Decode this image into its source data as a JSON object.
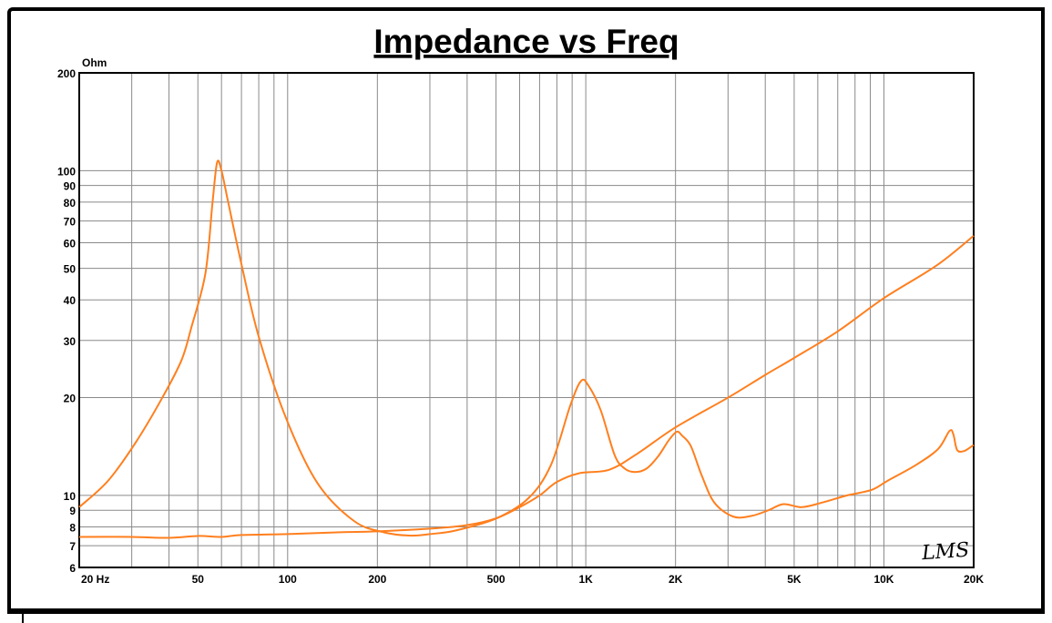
{
  "chart_data": {
    "type": "line",
    "title": "Impedance vs Freq",
    "ylabel": "Ohm",
    "xlabel": "",
    "x_scale": "log",
    "y_scale": "log",
    "xlim": [
      20,
      20000
    ],
    "ylim": [
      6,
      200
    ],
    "grid": true,
    "x_ticks": [
      {
        "v": 20,
        "label": "20  Hz"
      },
      {
        "v": 50,
        "label": "50"
      },
      {
        "v": 100,
        "label": "100"
      },
      {
        "v": 200,
        "label": "200"
      },
      {
        "v": 500,
        "label": "500"
      },
      {
        "v": 1000,
        "label": "1K"
      },
      {
        "v": 2000,
        "label": "2K"
      },
      {
        "v": 5000,
        "label": "5K"
      },
      {
        "v": 10000,
        "label": "10K"
      },
      {
        "v": 20000,
        "label": "20K"
      }
    ],
    "y_ticks": [
      {
        "v": 200,
        "label": "200"
      },
      {
        "v": 100,
        "label": "100"
      },
      {
        "v": 90,
        "label": "90"
      },
      {
        "v": 80,
        "label": "80"
      },
      {
        "v": 70,
        "label": "70"
      },
      {
        "v": 60,
        "label": "60"
      },
      {
        "v": 50,
        "label": "50"
      },
      {
        "v": 40,
        "label": "40"
      },
      {
        "v": 30,
        "label": "30"
      },
      {
        "v": 20,
        "label": "20"
      },
      {
        "v": 10,
        "label": "10"
      },
      {
        "v": 9,
        "label": "9"
      },
      {
        "v": 8,
        "label": "8"
      },
      {
        "v": 7,
        "label": "7"
      },
      {
        "v": 6,
        "label": "6"
      }
    ],
    "series": [
      {
        "color": "#ff7f1e",
        "points": [
          [
            20,
            9.2
          ],
          [
            25,
            11.1
          ],
          [
            31,
            14.6
          ],
          [
            38,
            20
          ],
          [
            44,
            26
          ],
          [
            47.5,
            32.8
          ],
          [
            53,
            48.3
          ],
          [
            56,
            80
          ],
          [
            58,
            106
          ],
          [
            60,
            100
          ],
          [
            63,
            81
          ],
          [
            70,
            51.5
          ],
          [
            80,
            30.8
          ],
          [
            99,
            17.2
          ],
          [
            126,
            10.9
          ],
          [
            167,
            8.34
          ],
          [
            210,
            7.7
          ],
          [
            256,
            7.52
          ],
          [
            300,
            7.6
          ],
          [
            367,
            7.8
          ],
          [
            502,
            8.5
          ],
          [
            642,
            9.8
          ],
          [
            764,
            12.4
          ],
          [
            887,
            18.9
          ],
          [
            964,
            22.5
          ],
          [
            1020,
            21.8
          ],
          [
            1122,
            18.3
          ],
          [
            1250,
            13.3
          ],
          [
            1350,
            12.1
          ],
          [
            1462,
            11.8
          ],
          [
            1600,
            12.1
          ],
          [
            1750,
            13.2
          ],
          [
            1900,
            14.8
          ],
          [
            2018,
            15.7
          ],
          [
            2100,
            15.3
          ],
          [
            2250,
            14.2
          ],
          [
            2450,
            11.5
          ],
          [
            2700,
            9.5
          ],
          [
            3127,
            8.6
          ],
          [
            3600,
            8.65
          ],
          [
            4100,
            9
          ],
          [
            4600,
            9.4
          ],
          [
            5300,
            9.2
          ],
          [
            6200,
            9.5
          ],
          [
            7530,
            10
          ],
          [
            9100,
            10.4
          ],
          [
            10300,
            11.1
          ],
          [
            12800,
            12.4
          ],
          [
            15200,
            13.9
          ],
          [
            16600,
            15.8
          ],
          [
            17100,
            15.4
          ],
          [
            17600,
            13.8
          ],
          [
            18600,
            13.7
          ],
          [
            20000,
            14.3
          ]
        ]
      },
      {
        "color": "#ff7f1e",
        "points": [
          [
            20,
            7.45
          ],
          [
            30,
            7.45
          ],
          [
            40,
            7.4
          ],
          [
            50,
            7.5
          ],
          [
            60,
            7.45
          ],
          [
            70,
            7.55
          ],
          [
            100,
            7.6
          ],
          [
            150,
            7.7
          ],
          [
            200,
            7.75
          ],
          [
            300,
            7.9
          ],
          [
            400,
            8.1
          ],
          [
            500,
            8.5
          ],
          [
            600,
            9.2
          ],
          [
            700,
            10
          ],
          [
            800,
            11
          ],
          [
            950,
            11.7
          ],
          [
            1200,
            12
          ],
          [
            1500,
            13.5
          ],
          [
            2000,
            16.2
          ],
          [
            3000,
            20
          ],
          [
            4000,
            23.5
          ],
          [
            5000,
            26.5
          ],
          [
            7000,
            32
          ],
          [
            10000,
            40.5
          ],
          [
            15000,
            51
          ],
          [
            20000,
            63
          ]
        ]
      }
    ]
  },
  "logo": "LMS"
}
